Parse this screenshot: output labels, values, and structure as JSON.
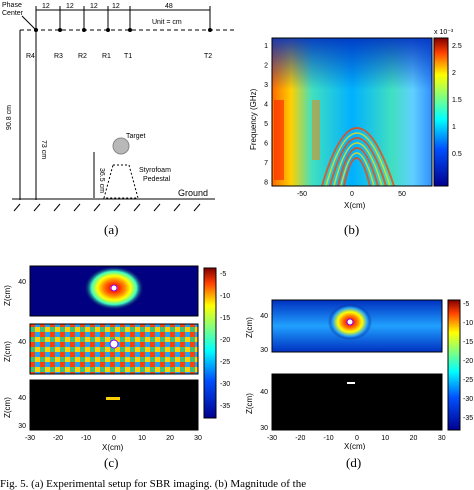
{
  "figure": {
    "caption_fragment": "Fig. 5. (a) Experimental setup for SBR imaging. (b) Magnitude of the",
    "sublabels": [
      "(a)",
      "(b)",
      "(c)",
      "(d)"
    ]
  },
  "setup": {
    "phase_center": "Phase\nCenter",
    "spacing": [
      "12",
      "12",
      "12",
      "12"
    ],
    "spacing_last": "48",
    "unit": "Unit = cm",
    "antennas": [
      "R4",
      "R3",
      "R2",
      "R1",
      "T1",
      "T2"
    ],
    "height_total": "90.8 cm",
    "height_mid": "73 cm",
    "height_pedestal": "36.5 cm",
    "target": "Target",
    "pedestal": "Styrofoam\nPedestal",
    "ground": "Ground"
  },
  "spectrogram": {
    "ylabel": "Frequency (GHz)",
    "xlabel": "X(cm)",
    "yticks": [
      "1",
      "2",
      "3",
      "4",
      "5",
      "6",
      "7",
      "8"
    ],
    "xticks": [
      "-50",
      "0",
      "50"
    ],
    "cbar_exp": "x 10⁻³",
    "cbar_ticks": [
      "2.5",
      "2",
      "1.5",
      "1",
      "0.5"
    ]
  },
  "images_c": {
    "ylabel": "Z(cm)",
    "xlabel": "X(cm)",
    "xticks": [
      "-30",
      "-20",
      "-10",
      "0",
      "10",
      "20",
      "30"
    ],
    "yticks": [
      "40",
      "30"
    ],
    "cbar_ticks": [
      "-5",
      "-10",
      "-15",
      "-20",
      "-25",
      "-30",
      "-35"
    ]
  },
  "images_d": {
    "ylabel": "Z(cm)",
    "xlabel": "X(cm)",
    "xticks": [
      "-30",
      "-20",
      "-10",
      "0",
      "10",
      "20",
      "30"
    ],
    "yticks": [
      "40",
      "30"
    ],
    "cbar_ticks": [
      "-5",
      "-10",
      "-15",
      "-20",
      "-25",
      "-30",
      "-35"
    ]
  },
  "colors": {
    "jet_dark": "#00008f",
    "jet_mid": "#00ffff",
    "jet_hot": "#ff0000",
    "black": "#000000"
  }
}
